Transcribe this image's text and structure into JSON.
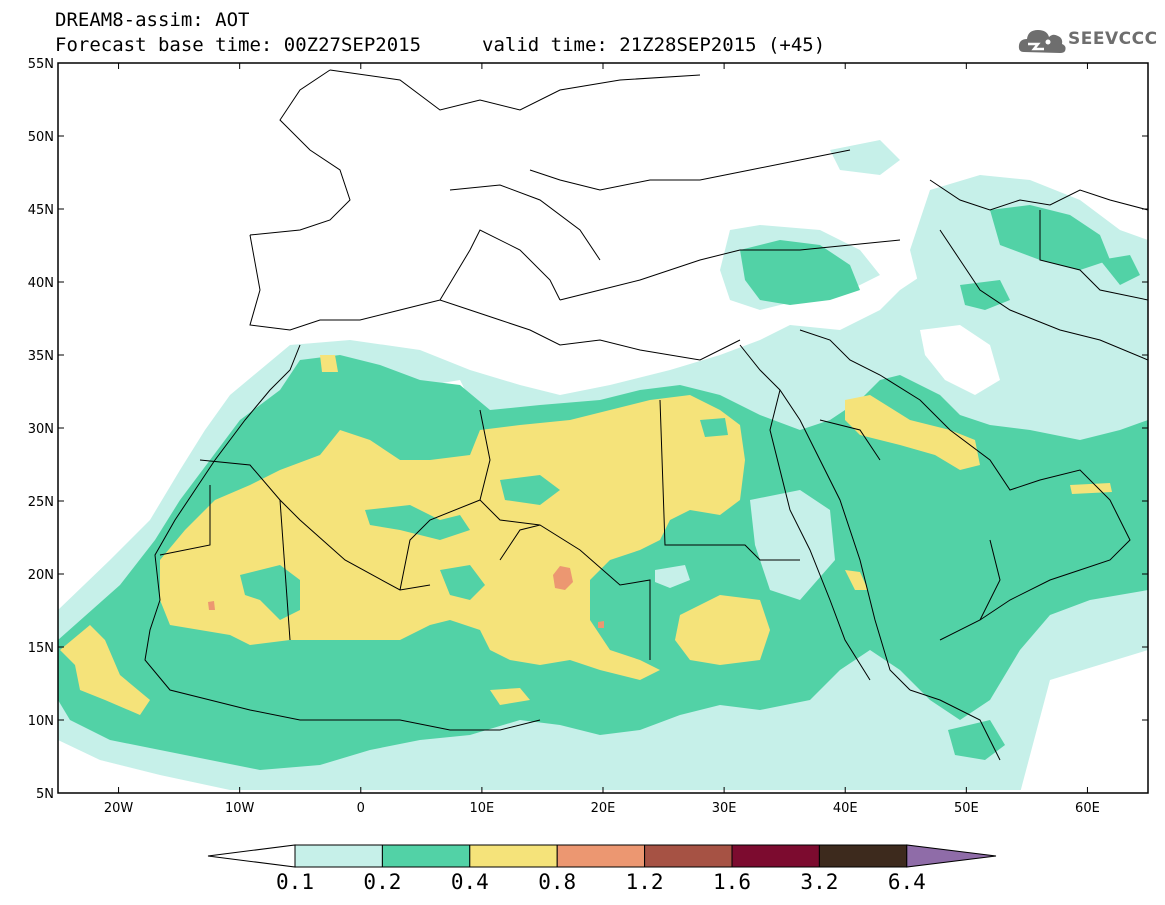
{
  "header": {
    "line1": "DREAM8-assim: AOT",
    "base_time": "Forecast base time: 00Z27SEP2015",
    "valid_time": "valid time: 21Z28SEP2015 (+45)",
    "logo_text": "SEEVCCC",
    "logo_icon": "cloud-icon"
  },
  "map": {
    "lon_range": [
      -25,
      65
    ],
    "lat_range": [
      5,
      55
    ],
    "lat_labels": [
      "55N",
      "50N",
      "45N",
      "40N",
      "35N",
      "30N",
      "25N",
      "20N",
      "15N",
      "10N",
      "5N"
    ],
    "lon_labels": [
      "20W",
      "10W",
      "0",
      "10E",
      "20E",
      "30E",
      "40E",
      "50E",
      "60E"
    ],
    "ocean_color": "#ffffff",
    "border_color": "#000000"
  },
  "colorbar": {
    "levels": [
      "0.1",
      "0.2",
      "0.4",
      "0.8",
      "1.2",
      "1.6",
      "3.2",
      "6.4"
    ],
    "colors": [
      "#c6f0e9",
      "#52d2a6",
      "#f5e37a",
      "#ec9771",
      "#a65244",
      "#7c0b2f",
      "#3d2a1d",
      "#8f6ca8"
    ],
    "under_color": "#ffffff"
  }
}
